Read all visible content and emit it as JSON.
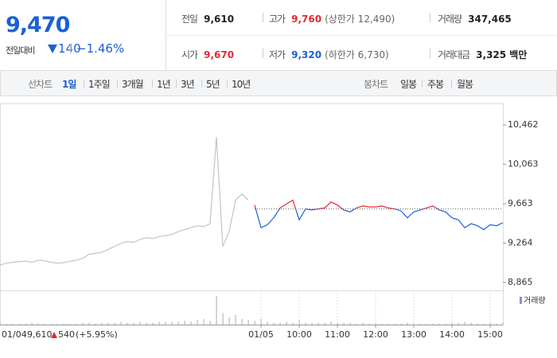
{
  "quote": {
    "price": "9,470",
    "change_label": "전일대비",
    "change": "140",
    "change_pct": "−1.46%"
  },
  "info": [
    {
      "label": "전일",
      "value": "9,610"
    },
    {
      "label": "고가",
      "value": "9,760",
      "note": "(상한가 12,490)"
    },
    {
      "label": "거래량",
      "value": "347,465"
    },
    {
      "label": "시가",
      "value": "9,670"
    },
    {
      "label": "저가",
      "value": "9,320",
      "note": "(하한가 6,730)"
    },
    {
      "label": "거래대금",
      "value": "3,325 백만"
    }
  ],
  "tabs": {
    "line_label": "선차트",
    "line": [
      "1일",
      "1주일",
      "3개월",
      "1년",
      "3년",
      "5년",
      "10년"
    ],
    "candle_label": "봉차트",
    "candle": [
      "일봉",
      "주봉",
      "월봉"
    ]
  },
  "footer": {
    "date": "01/04",
    "price": "9,610",
    "change": "540",
    "change_pct": "(+5.95%)"
  },
  "chart_data": {
    "type": "line",
    "categories": [
      null,
      null,
      null,
      null,
      null,
      null,
      null,
      null,
      null,
      null,
      null,
      null,
      null,
      null,
      null,
      null,
      null,
      null,
      null,
      null,
      null,
      null,
      null,
      null,
      null,
      null,
      null,
      null,
      null,
      null,
      null,
      null,
      null,
      null,
      null,
      null,
      null,
      null,
      null,
      null,
      null,
      "01/05",
      null,
      null,
      null,
      null,
      null,
      "10:00",
      null,
      null,
      null,
      null,
      null,
      "11:00",
      null,
      null,
      null,
      null,
      null,
      "12:00",
      null,
      null,
      null,
      null,
      null,
      "13:00",
      null,
      null,
      null,
      null,
      null,
      "14:00",
      null,
      null,
      null,
      null,
      null,
      "15:00",
      null,
      null
    ],
    "series": [
      {
        "color": "#c4c4c4",
        "values": [
          9040,
          9060,
          9070,
          9075,
          9080,
          9070,
          9090,
          9085,
          9070,
          9060,
          9065,
          9080,
          9090,
          9110,
          9150,
          9160,
          9170,
          9200,
          9230,
          9260,
          9280,
          9270,
          9300,
          9320,
          9310,
          9330,
          9340,
          9350,
          9380,
          9400,
          9420,
          9440,
          9430,
          9460,
          10340,
          9230,
          9380,
          9700,
          9760,
          9700,
          null,
          null,
          null,
          null,
          null,
          null,
          null,
          null,
          null,
          null,
          null,
          null,
          null,
          null,
          null,
          null,
          null,
          null,
          null,
          null,
          null,
          null,
          null,
          null,
          null,
          null,
          null,
          null,
          null,
          null,
          null,
          null,
          null,
          null,
          null,
          null,
          null,
          null,
          null,
          null
        ]
      },
      {
        "color": "#e02a34",
        "down_color": "#1a60d6",
        "values": [
          null,
          null,
          null,
          null,
          null,
          null,
          null,
          null,
          null,
          null,
          null,
          null,
          null,
          null,
          null,
          null,
          null,
          null,
          null,
          null,
          null,
          null,
          null,
          null,
          null,
          null,
          null,
          null,
          null,
          null,
          null,
          null,
          null,
          null,
          null,
          null,
          null,
          null,
          null,
          null,
          9650,
          9420,
          9450,
          9520,
          9620,
          9660,
          9700,
          9500,
          9610,
          9600,
          9610,
          9620,
          9680,
          9650,
          9600,
          9580,
          9620,
          9640,
          9630,
          9630,
          9640,
          9620,
          9610,
          9590,
          9520,
          9580,
          9600,
          9620,
          9640,
          9600,
          9580,
          9520,
          9500,
          9420,
          9460,
          9440,
          9400,
          9450,
          9440,
          9470
        ]
      }
    ],
    "baseline": 9610,
    "ylim": [
      8784,
      10680
    ],
    "yticks": [
      {
        "value": 10462,
        "label": "10,462"
      },
      {
        "value": 10063,
        "label": "10,063"
      },
      {
        "value": 9663,
        "label": "9,663"
      },
      {
        "value": 9264,
        "label": "9,264"
      },
      {
        "value": 8865,
        "label": "8,865"
      }
    ],
    "volume": {
      "name": "거래량",
      "color": "#b8b8b8",
      "legend_color": "#9b8bc4",
      "values": [
        2,
        1,
        1,
        1,
        1,
        2,
        1,
        1,
        1,
        1,
        1,
        1,
        1,
        2,
        2,
        1,
        2,
        2,
        2,
        3,
        2,
        2,
        3,
        2,
        2,
        3,
        3,
        3,
        3,
        4,
        3,
        5,
        6,
        4,
        30,
        12,
        8,
        10,
        6,
        5,
        4,
        6,
        3,
        2,
        2,
        3,
        2,
        5,
        2,
        2,
        2,
        2,
        3,
        2,
        2,
        2,
        1,
        2,
        1,
        1,
        1,
        1,
        1,
        1,
        2,
        1,
        1,
        1,
        1,
        1,
        1,
        2,
        2,
        3,
        2,
        1,
        1,
        2,
        1,
        2
      ]
    }
  }
}
